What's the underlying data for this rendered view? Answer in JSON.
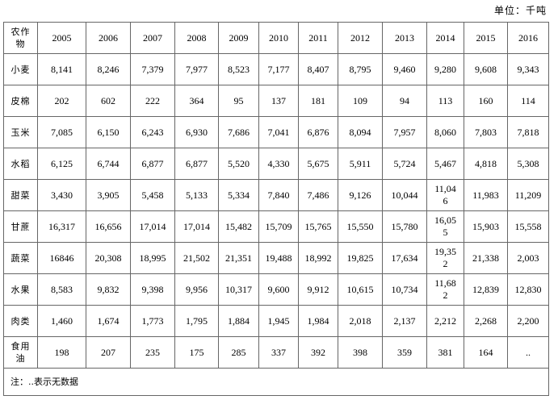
{
  "unit": "单位：千吨",
  "table": {
    "header": [
      "农作物",
      "2005",
      "2006",
      "2007",
      "2008",
      "2009",
      "2010",
      "2011",
      "2012",
      "2013",
      "2014",
      "2015",
      "2016"
    ],
    "rows": [
      [
        "小麦",
        "8,141",
        "8,246",
        "7,379",
        "7,977",
        "8,523",
        "7,177",
        "8,407",
        "8,795",
        "9,460",
        "9,280",
        "9,608",
        "9,343"
      ],
      [
        "皮棉",
        "202",
        "602",
        "222",
        "364",
        "95",
        "137",
        "181",
        "109",
        "94",
        "113",
        "160",
        "114"
      ],
      [
        "玉米",
        "7,085",
        "6,150",
        "6,243",
        "6,930",
        "7,686",
        "7,041",
        "6,876",
        "8,094",
        "7,957",
        "8,060",
        "7,803",
        "7,818"
      ],
      [
        "水稻",
        "6,125",
        "6,744",
        "6,877",
        "6,877",
        "5,520",
        "4,330",
        "5,675",
        "5,911",
        "5,724",
        "5,467",
        "4,818",
        "5,308"
      ],
      [
        "甜菜",
        "3,430",
        "3,905",
        "5,458",
        "5,133",
        "5,334",
        "7,840",
        "7,486",
        "9,126",
        "10,044",
        "11,046",
        "11,983",
        "11,209"
      ],
      [
        "甘蔗",
        "16,317",
        "16,656",
        "17,014",
        "17,014",
        "15,482",
        "15,709",
        "15,765",
        "15,550",
        "15,780",
        "16,055",
        "15,903",
        "15,558"
      ],
      [
        "蔬菜",
        "16846",
        "20,308",
        "18,995",
        "21,502",
        "21,351",
        "19,488",
        "18,992",
        "19,825",
        "17,634",
        "19,352",
        "21,338",
        "2,003"
      ],
      [
        "水果",
        "8,583",
        "9,832",
        "9,398",
        "9,956",
        "10,317",
        "9,600",
        "9,912",
        "10,615",
        "10,734",
        "11,682",
        "12,839",
        "12,830"
      ],
      [
        "肉类",
        "1,460",
        "1,674",
        "1,773",
        "1,795",
        "1,884",
        "1,945",
        "1,984",
        "2,018",
        "2,137",
        "2,212",
        "2,268",
        "2,200"
      ],
      [
        "食用油",
        "198",
        "207",
        "235",
        "175",
        "285",
        "337",
        "392",
        "398",
        "359",
        "381",
        "164",
        ".."
      ]
    ],
    "note": "注：..表示无数据"
  }
}
